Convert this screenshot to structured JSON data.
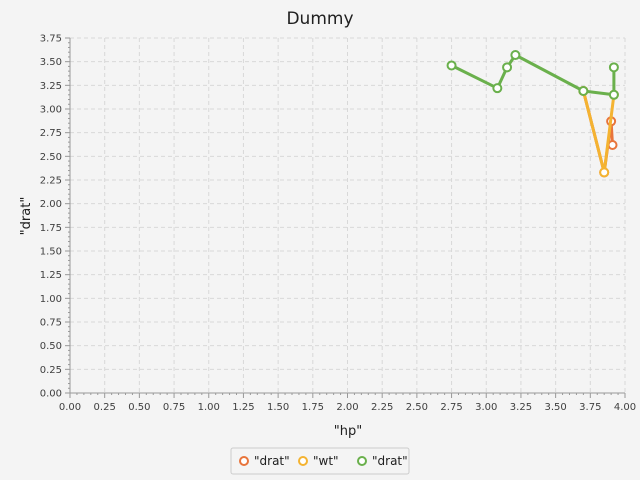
{
  "chart_data": {
    "type": "line",
    "title": "Dummy",
    "xlabel": "\"hp\"",
    "ylabel": "\"drat\"",
    "xlim": [
      0,
      4.0
    ],
    "ylim": [
      0,
      3.75
    ],
    "x_ticks": [
      "0.00",
      "0.25",
      "0.50",
      "0.75",
      "1.00",
      "1.25",
      "1.50",
      "1.75",
      "2.00",
      "2.25",
      "2.50",
      "2.75",
      "3.00",
      "3.25",
      "3.50",
      "3.75",
      "4.00"
    ],
    "y_ticks": [
      "0.00",
      "0.25",
      "0.50",
      "0.75",
      "1.00",
      "1.25",
      "1.50",
      "1.75",
      "2.00",
      "2.25",
      "2.50",
      "2.75",
      "3.00",
      "3.25",
      "3.50",
      "3.75"
    ],
    "grid": true,
    "legend_position": "bottom",
    "series": [
      {
        "name": "\"drat\"",
        "color": "#e8743b",
        "points": [
          [
            3.7,
            3.19
          ],
          [
            3.85,
            2.33
          ],
          [
            3.9,
            2.87
          ],
          [
            3.91,
            2.62
          ]
        ]
      },
      {
        "name": "\"wt\"",
        "color": "#f4b331",
        "points": [
          [
            3.7,
            3.19
          ],
          [
            3.85,
            2.33
          ],
          [
            3.92,
            3.15
          ]
        ]
      },
      {
        "name": "\"drat\"",
        "color": "#6ab04c",
        "points": [
          [
            2.75,
            3.46
          ],
          [
            3.08,
            3.22
          ],
          [
            3.15,
            3.44
          ],
          [
            3.21,
            3.57
          ],
          [
            3.7,
            3.19
          ],
          [
            3.92,
            3.15
          ],
          [
            3.92,
            3.44
          ]
        ]
      }
    ]
  }
}
